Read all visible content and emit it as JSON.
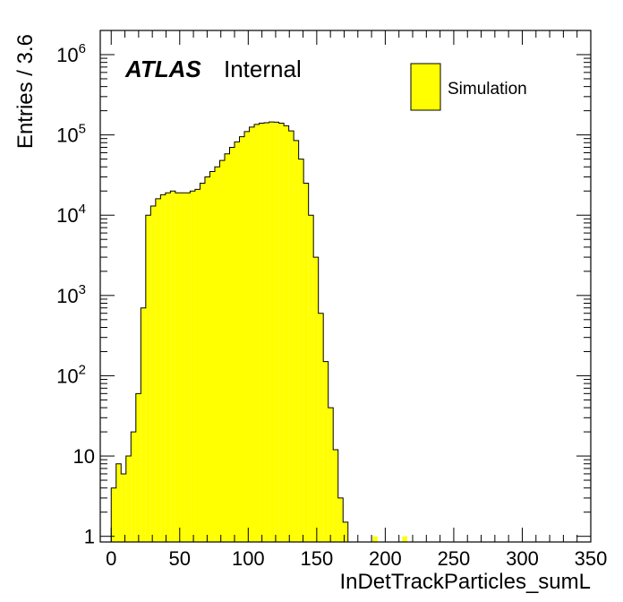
{
  "chart_data": {
    "type": "bar",
    "title": "",
    "xlabel": "InDetTrackParticles_sumL",
    "ylabel": "Entries / 3.6",
    "xlim": [
      -8,
      350
    ],
    "ylim": [
      0.85,
      2000000
    ],
    "yscale": "log",
    "grid": false,
    "bin_width": 3.6,
    "fill_color": "#ffff00",
    "line_color": "#000000",
    "x_ticks": [
      "0",
      "50",
      "100",
      "150",
      "200",
      "250",
      "300",
      "350"
    ],
    "y_ticks": [
      "1",
      "10",
      "10^2",
      "10^3",
      "10^4",
      "10^5",
      "10^6"
    ],
    "annotation": {
      "atlas": "ATLAS",
      "status": "Internal"
    },
    "legend": {
      "position": "top-right",
      "entries": [
        "Simulation"
      ]
    },
    "series": [
      {
        "name": "Simulation",
        "x_start": [
          0.0,
          3.6,
          7.2,
          10.8,
          14.4,
          18.0,
          21.6,
          25.2,
          28.8,
          32.4,
          36.0,
          39.6,
          43.2,
          46.8,
          50.4,
          54.0,
          57.6,
          61.2,
          64.8,
          68.4,
          72.0,
          75.6,
          79.2,
          82.8,
          86.4,
          90.0,
          93.6,
          97.2,
          100.8,
          104.4,
          108.0,
          111.6,
          115.2,
          118.8,
          122.4,
          126.0,
          129.6,
          133.2,
          136.8,
          140.4,
          144.0,
          147.6,
          151.2,
          154.8,
          158.4,
          162.0,
          165.6,
          169.2,
          172.8,
          176.4,
          190.8,
          212.4
        ],
        "values": [
          4,
          8,
          6,
          10,
          20,
          60,
          700,
          10000,
          13000,
          16000,
          18000,
          19000,
          20000,
          19000,
          19000,
          19000,
          20000,
          21000,
          25000,
          30000,
          35000,
          40000,
          48000,
          58000,
          70000,
          82000,
          95000,
          110000,
          125000,
          135000,
          140000,
          142000,
          145000,
          144000,
          140000,
          130000,
          112000,
          85000,
          50000,
          25000,
          10000,
          3000,
          600,
          150,
          40,
          12,
          3,
          1.5,
          0,
          0,
          1,
          1
        ]
      }
    ]
  }
}
